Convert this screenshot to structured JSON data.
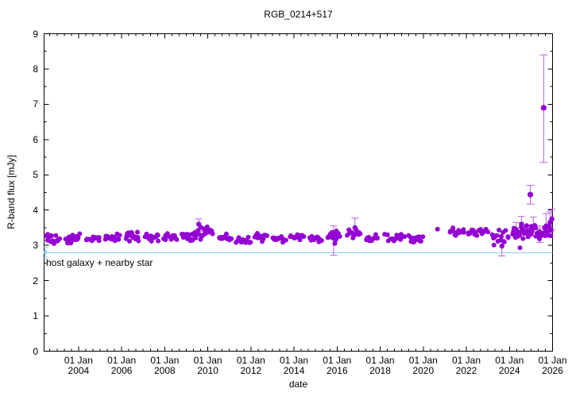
{
  "title": "RGB_0214+517",
  "axes": {
    "ylabel": "R-band flux [mJy]",
    "xlabel": "date",
    "y_ticks": [
      "0",
      "1",
      "2",
      "3",
      "4",
      "5",
      "6",
      "7",
      "8",
      "9"
    ],
    "x_ticks": [
      {
        "line1": "01 Jan",
        "line2": "2004",
        "year": 2004
      },
      {
        "line1": "01 Jan",
        "line2": "2006",
        "year": 2006
      },
      {
        "line1": "01 Jan",
        "line2": "2008",
        "year": 2008
      },
      {
        "line1": "01 Jan",
        "line2": "2010",
        "year": 2010
      },
      {
        "line1": "01 Jan",
        "line2": "2012",
        "year": 2012
      },
      {
        "line1": "01 Jan",
        "line2": "2014",
        "year": 2014
      },
      {
        "line1": "01 Jan",
        "line2": "2016",
        "year": 2016
      },
      {
        "line1": "01 Jan",
        "line2": "2018",
        "year": 2018
      },
      {
        "line1": "01 Jan",
        "line2": "2020",
        "year": 2020
      },
      {
        "line1": "01 Jan",
        "line2": "2022",
        "year": 2022
      },
      {
        "line1": "01 Jan",
        "line2": "2024",
        "year": 2024
      },
      {
        "line1": "01 Jan",
        "line2": "2026",
        "year": 2026
      }
    ]
  },
  "annotation": {
    "text": "host galaxy + nearby star"
  },
  "colors": {
    "point": "#9400d3",
    "errorbar": "#b860e8",
    "baseline": "#87ceeb",
    "frame": "#000000",
    "background": "#ffffff"
  },
  "chart_data": {
    "type": "scatter",
    "title": "RGB_0214+517",
    "xlabel": "date",
    "ylabel": "R-band flux [mJy]",
    "xlim": [
      2002.4,
      2026.0
    ],
    "ylim": [
      0,
      9
    ],
    "x_major_tick_years": [
      2004,
      2006,
      2008,
      2010,
      2012,
      2014,
      2016,
      2018,
      2020,
      2022,
      2024,
      2026
    ],
    "x_minor_tick_step_years": 0.3333,
    "y_major_tick_step": 1,
    "y_minor_tick_step": 0.5,
    "grid": false,
    "legend": "none",
    "baseline": {
      "label": "host galaxy + nearby star",
      "flux": 2.79
    },
    "reference_point": {
      "year": 2002.46,
      "flux": 2.8,
      "err_lo": 0.14,
      "err_hi": 0.14
    },
    "seasons": [
      {
        "start": 2002.47,
        "end": 2003.14,
        "fmin": 3.0,
        "fmax": 3.42,
        "n": 14
      },
      {
        "start": 2003.4,
        "end": 2004.06,
        "fmin": 3.0,
        "fmax": 3.35,
        "n": 16
      },
      {
        "start": 2004.35,
        "end": 2005.01,
        "fmin": 3.05,
        "fmax": 3.3,
        "n": 14
      },
      {
        "start": 2005.24,
        "end": 2005.9,
        "fmin": 3.08,
        "fmax": 3.38,
        "n": 16
      },
      {
        "start": 2006.16,
        "end": 2006.82,
        "fmin": 3.1,
        "fmax": 3.4,
        "n": 16
      },
      {
        "start": 2007.08,
        "end": 2007.74,
        "fmin": 3.1,
        "fmax": 3.38,
        "n": 16
      },
      {
        "start": 2007.96,
        "end": 2008.55,
        "fmin": 3.05,
        "fmax": 3.35,
        "n": 14
      },
      {
        "start": 2008.77,
        "end": 2009.47,
        "fmin": 3.1,
        "fmax": 3.4,
        "n": 16
      },
      {
        "start": 2009.51,
        "end": 2010.24,
        "fmin": 3.15,
        "fmax": 3.6,
        "n": 18
      },
      {
        "start": 2010.5,
        "end": 2011.09,
        "fmin": 3.08,
        "fmax": 3.35,
        "n": 13
      },
      {
        "start": 2011.31,
        "end": 2011.97,
        "fmin": 3.0,
        "fmax": 3.3,
        "n": 15
      },
      {
        "start": 2012.16,
        "end": 2012.78,
        "fmin": 3.05,
        "fmax": 3.35,
        "n": 15
      },
      {
        "start": 2013.0,
        "end": 2013.63,
        "fmin": 3.08,
        "fmax": 3.3,
        "n": 13
      },
      {
        "start": 2013.81,
        "end": 2014.44,
        "fmin": 3.1,
        "fmax": 3.35,
        "n": 15
      },
      {
        "start": 2014.73,
        "end": 2015.32,
        "fmin": 3.08,
        "fmax": 3.3,
        "n": 13
      },
      {
        "start": 2015.54,
        "end": 2016.13,
        "fmin": 3.0,
        "fmax": 3.52,
        "n": 16
      },
      {
        "start": 2016.46,
        "end": 2017.13,
        "fmin": 3.18,
        "fmax": 3.48,
        "n": 13
      },
      {
        "start": 2017.31,
        "end": 2017.9,
        "fmin": 3.08,
        "fmax": 3.33,
        "n": 11
      },
      {
        "start": 2018.23,
        "end": 2019.15,
        "fmin": 3.08,
        "fmax": 3.35,
        "n": 14
      },
      {
        "start": 2019.33,
        "end": 2019.96,
        "fmin": 3.02,
        "fmax": 3.35,
        "n": 12
      },
      {
        "start": 2021.18,
        "end": 2021.91,
        "fmin": 3.2,
        "fmax": 3.55,
        "n": 14
      },
      {
        "start": 2022.02,
        "end": 2023.02,
        "fmin": 3.22,
        "fmax": 3.5,
        "n": 17
      },
      {
        "start": 2023.13,
        "end": 2024.01,
        "fmin": 2.98,
        "fmax": 3.45,
        "n": 14
      },
      {
        "start": 2024.12,
        "end": 2025.97,
        "fmin": 3.1,
        "fmax": 3.62,
        "n": 42
      }
    ],
    "single_points": [
      {
        "year": 2020.66,
        "flux": 3.46
      },
      {
        "year": 2023.28,
        "flux": 3.01
      },
      {
        "year": 2024.49,
        "flux": 2.93
      }
    ],
    "errorbar_points": [
      {
        "year": 2009.58,
        "flux": 3.6,
        "err_lo": 0.2,
        "err_hi": 0.15
      },
      {
        "year": 2015.84,
        "flux": 3.2,
        "err_lo": 0.48,
        "err_hi": 0.35
      },
      {
        "year": 2016.83,
        "flux": 3.5,
        "err_lo": 0.2,
        "err_hi": 0.27
      },
      {
        "year": 2023.65,
        "flux": 2.98,
        "err_lo": 0.28,
        "err_hi": 0.2
      },
      {
        "year": 2024.31,
        "flux": 3.45,
        "err_lo": 0.2,
        "err_hi": 0.2
      },
      {
        "year": 2024.56,
        "flux": 3.6,
        "err_lo": 0.2,
        "err_hi": 0.22
      },
      {
        "year": 2024.78,
        "flux": 3.35,
        "err_lo": 0.15,
        "err_hi": 0.15
      },
      {
        "year": 2025.11,
        "flux": 3.5,
        "err_lo": 0.25,
        "err_hi": 0.3
      },
      {
        "year": 2025.41,
        "flux": 3.3,
        "err_lo": 0.22,
        "err_hi": 0.25
      },
      {
        "year": 2025.7,
        "flux": 3.55,
        "err_lo": 0.3,
        "err_hi": 0.35
      },
      {
        "year": 2025.88,
        "flux": 3.65,
        "err_lo": 0.28,
        "err_hi": 0.3
      },
      {
        "year": 2025.97,
        "flux": 3.75,
        "err_lo": 0.3,
        "err_hi": 0.28
      }
    ],
    "outliers": [
      {
        "year": 2024.97,
        "flux": 4.44,
        "err_lo": 0.27,
        "err_hi": 0.26
      },
      {
        "year": 2025.59,
        "flux": 6.9,
        "err_lo": 1.55,
        "err_hi": 1.5
      }
    ]
  }
}
